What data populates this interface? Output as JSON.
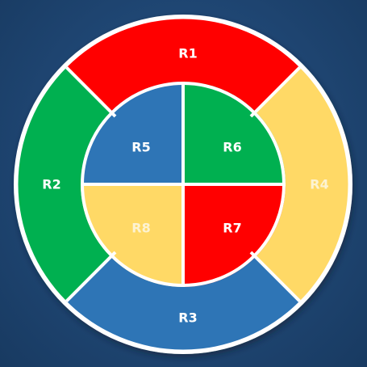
{
  "diagram": {
    "outer_ring": [
      {
        "id": "r1",
        "label": "R1",
        "color": "#ff0000"
      },
      {
        "id": "r4",
        "label": "R4",
        "color": "#ffd966"
      },
      {
        "id": "r3",
        "label": "R3",
        "color": "#2e75b6"
      },
      {
        "id": "r2",
        "label": "R2",
        "color": "#00b050"
      }
    ],
    "inner_circle": [
      {
        "id": "r5",
        "label": "R5",
        "color": "#2e75b6"
      },
      {
        "id": "r6",
        "label": "R6",
        "color": "#00b050"
      },
      {
        "id": "r7",
        "label": "R7",
        "color": "#ff0000"
      },
      {
        "id": "r8",
        "label": "R8",
        "color": "#ffd966"
      }
    ],
    "border_color": "#ffffff",
    "background_color": "#1f4673"
  }
}
